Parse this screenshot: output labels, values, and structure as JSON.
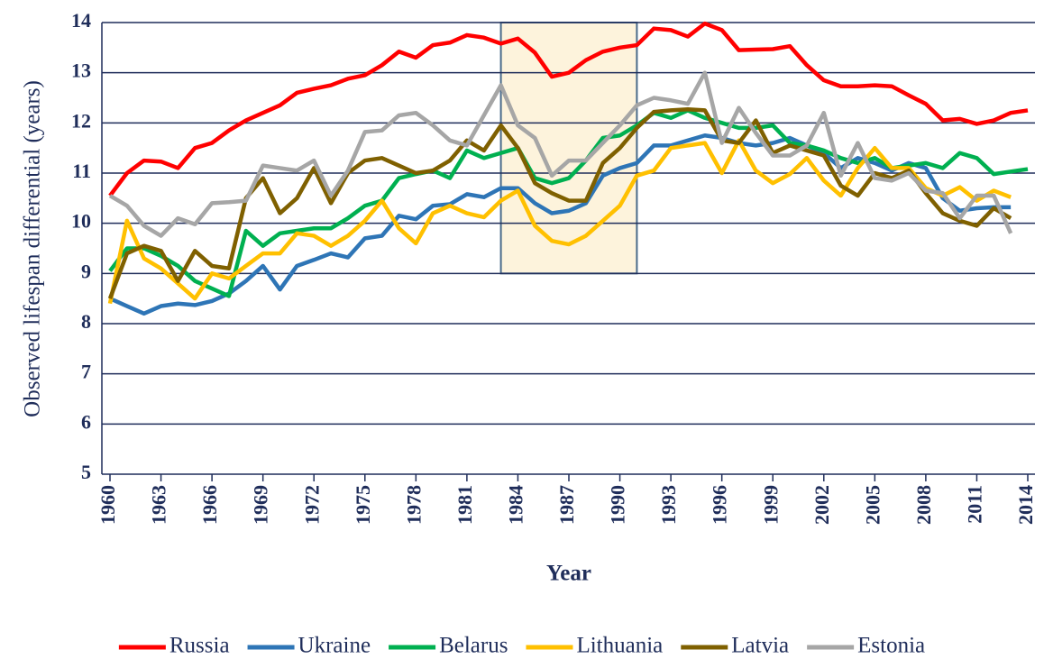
{
  "chart_data": {
    "type": "line",
    "x_label": "Year",
    "y_label": "Observed lifespan differential (years)",
    "x": [
      1960,
      1961,
      1962,
      1963,
      1964,
      1965,
      1966,
      1967,
      1968,
      1969,
      1970,
      1971,
      1972,
      1973,
      1974,
      1975,
      1976,
      1977,
      1978,
      1979,
      1980,
      1981,
      1982,
      1983,
      1984,
      1985,
      1986,
      1987,
      1988,
      1989,
      1990,
      1991,
      1992,
      1993,
      1994,
      1995,
      1996,
      1997,
      1998,
      1999,
      2000,
      2001,
      2002,
      2003,
      2004,
      2005,
      2006,
      2007,
      2008,
      2009,
      2010,
      2011,
      2012,
      2013,
      2014
    ],
    "xlim": [
      1960,
      2014
    ],
    "xticks": [
      1960,
      1963,
      1966,
      1969,
      1972,
      1975,
      1978,
      1981,
      1984,
      1987,
      1990,
      1993,
      1996,
      1999,
      2002,
      2005,
      2008,
      2011,
      2014
    ],
    "ylim": [
      5,
      14
    ],
    "yticks": [
      5,
      6,
      7,
      8,
      9,
      10,
      11,
      12,
      13,
      14
    ],
    "grid": true,
    "legend": "bottom",
    "highlight": {
      "x": [
        1983,
        1991
      ],
      "y": [
        9,
        14
      ],
      "color": "#fdf3dc"
    },
    "series": [
      {
        "name": "Russia",
        "color": "#ff0000",
        "values": [
          10.55,
          11.0,
          11.25,
          11.23,
          11.1,
          11.5,
          11.6,
          11.85,
          12.05,
          12.2,
          12.35,
          12.6,
          12.68,
          12.75,
          12.88,
          12.95,
          13.15,
          13.42,
          13.3,
          13.55,
          13.6,
          13.75,
          13.7,
          13.58,
          13.68,
          13.4,
          12.92,
          13.0,
          13.25,
          13.42,
          13.5,
          13.55,
          13.88,
          13.85,
          13.72,
          13.98,
          13.85,
          13.45,
          13.46,
          13.47,
          13.53,
          13.15,
          12.85,
          12.73,
          12.73,
          12.75,
          12.73,
          12.55,
          12.38,
          12.05,
          12.08,
          11.98,
          12.05,
          12.2,
          12.25
        ]
      },
      {
        "name": "Ukraine",
        "color": "#2e75b6",
        "values": [
          8.5,
          8.35,
          8.2,
          8.35,
          8.4,
          8.37,
          8.45,
          8.6,
          8.85,
          9.15,
          8.68,
          9.15,
          9.27,
          9.4,
          9.32,
          9.7,
          9.75,
          10.15,
          10.08,
          10.35,
          10.38,
          10.58,
          10.52,
          10.7,
          10.7,
          10.4,
          10.2,
          10.25,
          10.4,
          10.95,
          11.1,
          11.2,
          11.55,
          11.55,
          11.65,
          11.75,
          11.7,
          11.6,
          11.55,
          11.6,
          11.7,
          11.55,
          11.4,
          11.1,
          11.3,
          11.2,
          11.05,
          11.2,
          11.1,
          10.5,
          10.25,
          10.3,
          10.32,
          10.32,
          null
        ]
      },
      {
        "name": "Belarus",
        "color": "#00b050",
        "values": [
          9.05,
          9.5,
          9.5,
          9.35,
          9.15,
          8.85,
          8.7,
          8.55,
          9.85,
          9.55,
          9.8,
          9.85,
          9.9,
          9.9,
          10.1,
          10.35,
          10.45,
          10.9,
          10.98,
          11.05,
          10.9,
          11.45,
          11.3,
          11.4,
          11.5,
          10.9,
          10.8,
          10.9,
          11.25,
          11.7,
          11.75,
          11.95,
          12.2,
          12.1,
          12.25,
          12.1,
          12.0,
          11.9,
          11.9,
          11.95,
          11.6,
          11.55,
          11.45,
          11.3,
          11.2,
          11.3,
          11.1,
          11.15,
          11.2,
          11.1,
          11.4,
          11.3,
          10.98,
          11.03,
          11.08
        ]
      },
      {
        "name": "Lithuania",
        "color": "#ffc000",
        "values": [
          8.4,
          10.05,
          9.3,
          9.1,
          8.8,
          8.5,
          9.0,
          8.9,
          9.15,
          9.4,
          9.4,
          9.8,
          9.75,
          9.55,
          9.75,
          10.05,
          10.45,
          9.9,
          9.6,
          10.2,
          10.35,
          10.2,
          10.12,
          10.45,
          10.65,
          9.95,
          9.65,
          9.58,
          9.75,
          10.05,
          10.35,
          10.95,
          11.05,
          11.5,
          11.55,
          11.6,
          11.0,
          11.65,
          11.05,
          10.8,
          10.98,
          11.3,
          10.85,
          10.55,
          11.1,
          11.5,
          11.1,
          11.1,
          10.7,
          10.55,
          10.72,
          10.45,
          10.65,
          10.52,
          null
        ]
      },
      {
        "name": "Latvia",
        "color": "#7f6000",
        "values": [
          8.5,
          9.4,
          9.55,
          9.45,
          8.85,
          9.45,
          9.15,
          9.1,
          10.5,
          10.9,
          10.2,
          10.5,
          11.1,
          10.4,
          11.0,
          11.25,
          11.3,
          11.15,
          11.0,
          11.05,
          11.25,
          11.65,
          11.45,
          11.95,
          11.5,
          10.8,
          10.6,
          10.45,
          10.45,
          11.2,
          11.5,
          11.9,
          12.22,
          12.25,
          12.27,
          12.25,
          11.65,
          11.6,
          12.05,
          11.4,
          11.55,
          11.45,
          11.35,
          10.75,
          10.55,
          11.0,
          10.9,
          11.05,
          10.6,
          10.2,
          10.05,
          9.95,
          10.3,
          10.1,
          null
        ]
      },
      {
        "name": "Estonia",
        "color": "#a6a6a6",
        "values": [
          10.55,
          10.35,
          9.95,
          9.75,
          10.1,
          9.98,
          10.4,
          10.42,
          10.45,
          11.15,
          11.1,
          11.05,
          11.25,
          10.55,
          11.05,
          11.82,
          11.85,
          12.15,
          12.2,
          11.95,
          11.65,
          11.55,
          12.15,
          12.75,
          11.95,
          11.7,
          10.95,
          11.25,
          11.25,
          11.6,
          11.95,
          12.35,
          12.5,
          12.45,
          12.38,
          13.0,
          11.6,
          12.3,
          11.8,
          11.35,
          11.35,
          11.55,
          12.2,
          10.95,
          11.6,
          10.9,
          10.85,
          11.0,
          10.65,
          10.6,
          10.1,
          10.55,
          10.55,
          9.8,
          null
        ]
      }
    ]
  }
}
